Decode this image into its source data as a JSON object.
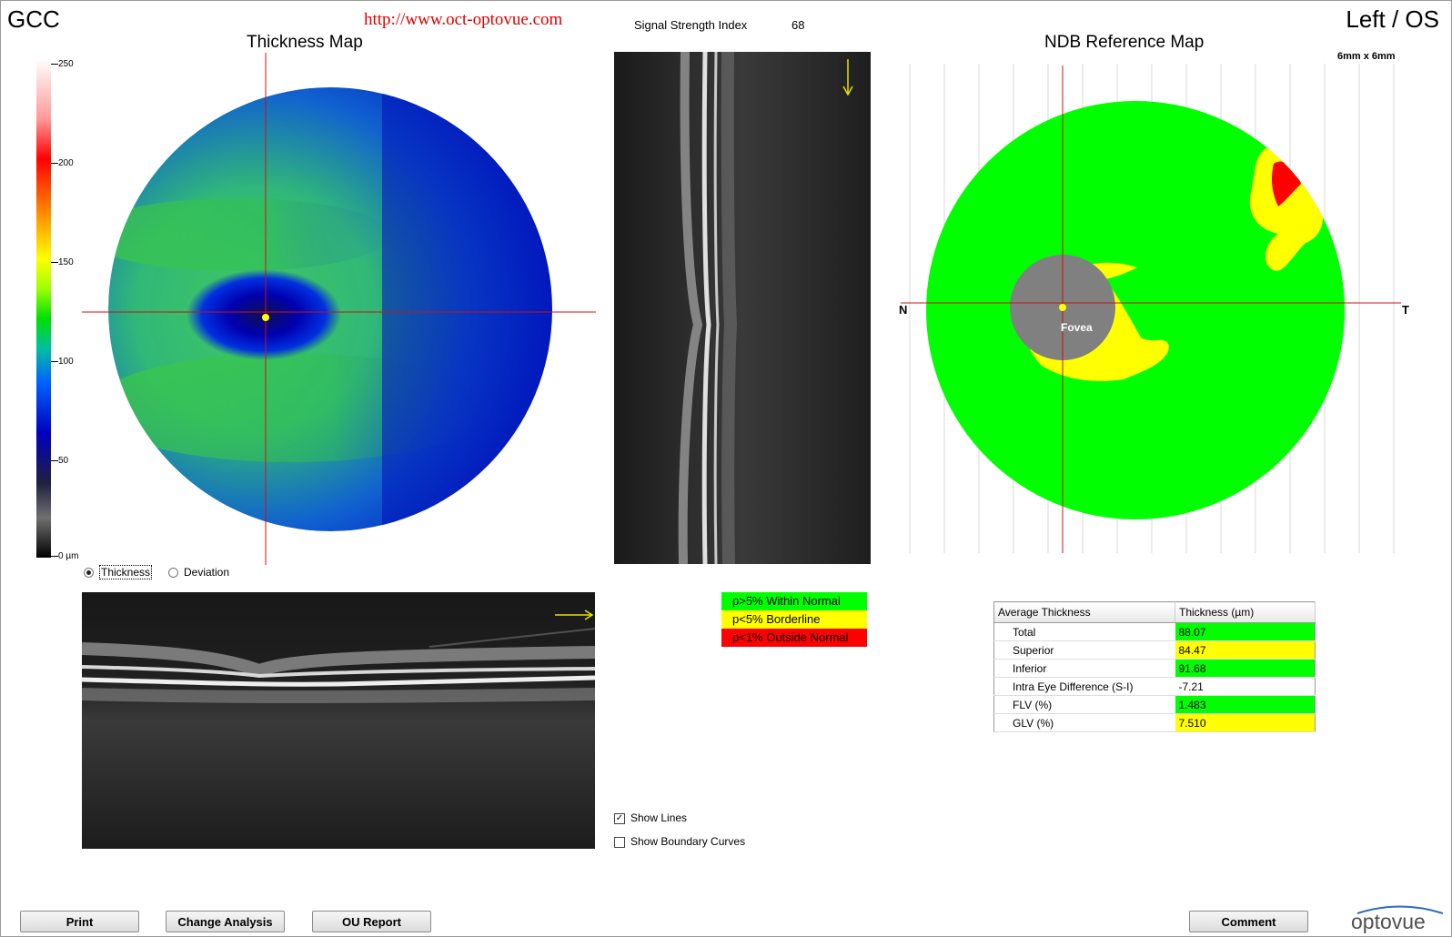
{
  "header": {
    "analysis": "GCC",
    "url": "http://www.oct-optovue.com",
    "ssi_label": "Signal Strength Index",
    "ssi_value": "68",
    "eye": "Left / OS"
  },
  "thickness_map": {
    "title": "Thickness Map",
    "scale_ticks": [
      "250",
      "200",
      "150",
      "100",
      "50",
      "0 µm"
    ],
    "modes": [
      "Thickness",
      "Deviation"
    ],
    "selected_mode": "Thickness"
  },
  "ndb_map": {
    "title": "NDB Reference Map",
    "size_label": "6mm x 6mm",
    "nasal": "N",
    "temporal": "T",
    "fovea": "Fovea"
  },
  "legend": [
    {
      "label": "p>5% Within Normal",
      "color": "#00ff00"
    },
    {
      "label": "p<5% Borderline",
      "color": "#ffff00"
    },
    {
      "label": "p<1% Outside Normal",
      "color": "#ff0000"
    }
  ],
  "average_table": {
    "headers": [
      "Average Thickness",
      "Thickness (µm)"
    ],
    "rows": [
      {
        "label": "Total",
        "value": "88.07",
        "color": "#00ff00"
      },
      {
        "label": "Superior",
        "value": "84.47",
        "color": "#ffff00"
      },
      {
        "label": "Inferior",
        "value": "91.68",
        "color": "#00ff00"
      },
      {
        "label": "Intra Eye Difference (S-I)",
        "value": "-7.21",
        "color": "#ffffff"
      },
      {
        "label": "FLV (%)",
        "value": "1.483",
        "color": "#00ff00"
      },
      {
        "label": "GLV (%)",
        "value": "7.510",
        "color": "#ffff00"
      }
    ]
  },
  "options": {
    "show_lines": "Show Lines",
    "show_lines_checked": true,
    "show_boundary": "Show Boundary Curves",
    "show_boundary_checked": false
  },
  "buttons": {
    "print": "Print",
    "change_analysis": "Change Analysis",
    "ou_report": "OU Report",
    "comment": "Comment"
  },
  "brand": {
    "logo": "optovue"
  },
  "colors": {
    "crosshair": "#d01010",
    "oct_bg": "#1a1a1a",
    "green": "#00ff00",
    "yellow": "#ffff00",
    "red": "#ff0000"
  }
}
